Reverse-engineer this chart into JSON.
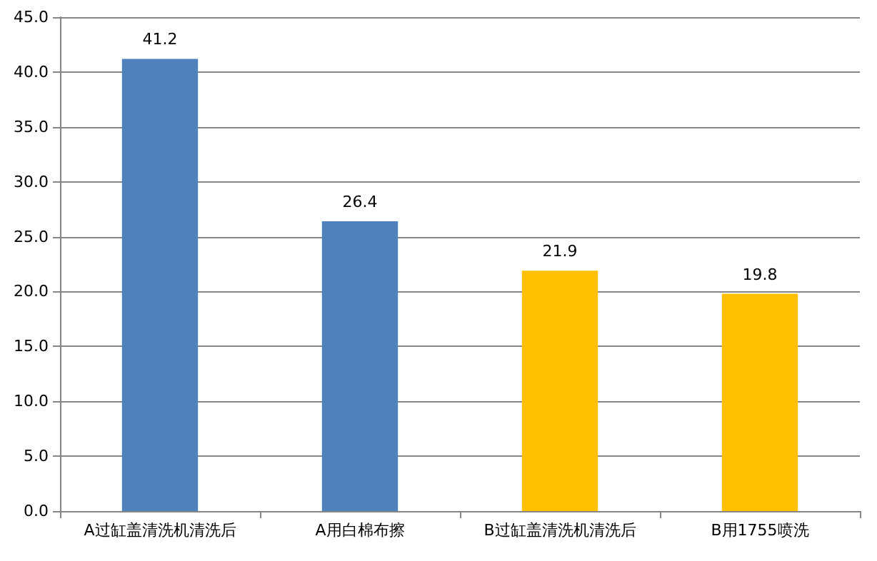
{
  "chart_data": {
    "type": "bar",
    "categories": [
      "A过缸盖清洗机清洗后",
      "A用白棉布擦",
      "B过缸盖清洗机清洗后",
      "B用1755喷洗"
    ],
    "values": [
      41.2,
      26.4,
      21.9,
      19.8
    ],
    "colors": [
      "#4f81bd",
      "#4f81bd",
      "#ffc000",
      "#ffc000"
    ],
    "ylim": [
      0,
      45
    ],
    "yticks": [
      {
        "value": 0,
        "label": "0.0"
      },
      {
        "value": 5,
        "label": "5.0"
      },
      {
        "value": 10,
        "label": "10.0"
      },
      {
        "value": 15,
        "label": "15.0"
      },
      {
        "value": 20,
        "label": "20.0"
      },
      {
        "value": 25,
        "label": "25.0"
      },
      {
        "value": 30,
        "label": "30.0"
      },
      {
        "value": 35,
        "label": "35.0"
      },
      {
        "value": 40,
        "label": "40.0"
      },
      {
        "value": 45,
        "label": "45.0"
      }
    ],
    "grid": "y",
    "data_labels": true
  }
}
